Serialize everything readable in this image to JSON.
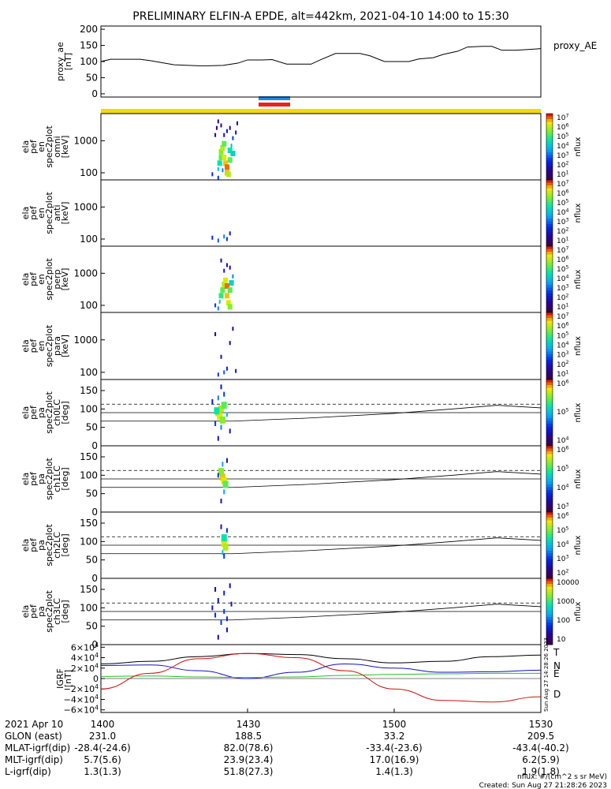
{
  "title": "PRELIMINARY ELFIN-A EPDE, alt=442km, 2021-04-10 14:00 to 15:30",
  "colors": {
    "sci_zone_bar": "#f5d90a",
    "nasc_bar": "#1e8ae8",
    "dasc_bar": "#e8231e",
    "grf_T": "#000000",
    "grf_N": "#1010c8",
    "grf_E": "#22c022",
    "grf_D": "#d01010"
  },
  "chart_data": [
    {
      "id": "proxy_ae",
      "type": "line",
      "ylabel": [
        "proxy_ae",
        "[nT]"
      ],
      "legend": "proxy_AE",
      "yticks": [
        "200",
        "150",
        "100",
        "50",
        "0"
      ],
      "ylim": [
        -10,
        210
      ],
      "x": [
        "14:00",
        "14:02",
        "14:05",
        "14:08",
        "14:10",
        "14:15",
        "14:18",
        "14:20",
        "14:22",
        "14:25",
        "14:28",
        "14:30",
        "14:33",
        "14:35",
        "14:38",
        "14:40",
        "14:43",
        "14:45",
        "14:48",
        "14:50",
        "14:53",
        "14:55",
        "14:58",
        "15:00",
        "15:03",
        "15:05",
        "15:08",
        "15:10",
        "15:13",
        "15:15",
        "15:18",
        "15:20",
        "15:22",
        "15:25",
        "15:28",
        "15:30"
      ],
      "values": [
        100,
        107,
        107,
        107,
        103,
        90,
        88,
        87,
        87,
        88,
        95,
        105,
        105,
        106,
        92,
        92,
        92,
        106,
        125,
        125,
        125,
        118,
        100,
        100,
        100,
        108,
        112,
        122,
        132,
        145,
        147,
        147,
        135,
        135,
        138,
        140
      ]
    },
    {
      "id": "en_omni",
      "type": "heatmap",
      "ylabel": [
        "ela",
        "pef",
        "en",
        "spec2plot",
        "omni",
        "[keV]"
      ],
      "yticks": [
        "1000",
        "100"
      ],
      "cbar_ticks": [
        "10^7",
        "10^6",
        "10^5",
        "10^4",
        "10^3",
        "10^2",
        "10^1"
      ],
      "cbar_label": "nflux",
      "active_time": [
        "14:33",
        "14:36"
      ],
      "cells": [
        [
          14.4,
          70,
          0.3
        ],
        [
          14.4,
          130,
          0.5
        ],
        [
          14.405,
          200,
          0.6
        ],
        [
          14.41,
          300,
          0.7
        ],
        [
          14.41,
          450,
          0.75
        ],
        [
          14.415,
          600,
          0.8
        ],
        [
          14.42,
          800,
          0.7
        ],
        [
          14.42,
          300,
          0.85
        ],
        [
          14.425,
          200,
          0.9
        ],
        [
          14.43,
          150,
          0.95
        ],
        [
          14.43,
          100,
          0.9
        ],
        [
          14.435,
          90,
          0.8
        ],
        [
          14.44,
          250,
          0.7
        ],
        [
          14.44,
          500,
          0.6
        ],
        [
          14.445,
          700,
          0.5
        ],
        [
          14.45,
          1200,
          0.3
        ],
        [
          14.42,
          1500,
          0.15
        ],
        [
          14.43,
          2000,
          0.2
        ],
        [
          14.44,
          2500,
          0.15
        ],
        [
          14.41,
          3000,
          0.1
        ],
        [
          14.4,
          4000,
          0.12
        ],
        [
          14.46,
          1800,
          0.18
        ],
        [
          14.465,
          3500,
          0.1
        ],
        [
          14.39,
          1500,
          0.12
        ],
        [
          14.395,
          2500,
          0.1
        ],
        [
          14.45,
          400,
          0.55
        ],
        [
          14.415,
          120,
          0.4
        ],
        [
          14.38,
          90,
          0.25
        ]
      ]
    },
    {
      "id": "en_anti",
      "type": "heatmap",
      "ylabel": [
        "ela",
        "pef",
        "en",
        "spec2plot",
        "anti",
        "[keV]"
      ],
      "yticks": [
        "1000",
        "100"
      ],
      "cbar_ticks": [
        "10^7",
        "10^6",
        "10^5",
        "10^4",
        "10^3",
        "10^2",
        "10^1"
      ],
      "cbar_label": "nflux",
      "active_time": [
        "14:33",
        "14:36"
      ],
      "cells": [
        [
          14.4,
          90,
          0.35
        ],
        [
          14.42,
          120,
          0.4
        ],
        [
          14.43,
          100,
          0.3
        ],
        [
          14.38,
          110,
          0.25
        ],
        [
          14.44,
          150,
          0.2
        ]
      ]
    },
    {
      "id": "en_perp",
      "type": "heatmap",
      "ylabel": [
        "ela",
        "pef",
        "en",
        "spec2plot",
        "perp",
        "[keV]"
      ],
      "yticks": [
        "1000",
        "100"
      ],
      "cbar_ticks": [
        "10^7",
        "10^6",
        "10^5",
        "10^4",
        "10^3",
        "10^2",
        "10^1"
      ],
      "cbar_label": "nflux",
      "active_time": [
        "14:33",
        "14:36"
      ],
      "cells": [
        [
          14.4,
          80,
          0.4
        ],
        [
          14.405,
          130,
          0.5
        ],
        [
          14.41,
          200,
          0.65
        ],
        [
          14.415,
          300,
          0.7
        ],
        [
          14.42,
          450,
          0.8
        ],
        [
          14.425,
          600,
          0.85
        ],
        [
          14.43,
          400,
          0.95
        ],
        [
          14.43,
          200,
          0.9
        ],
        [
          14.435,
          120,
          0.85
        ],
        [
          14.44,
          90,
          0.75
        ],
        [
          14.44,
          300,
          0.7
        ],
        [
          14.445,
          500,
          0.55
        ],
        [
          14.45,
          800,
          0.4
        ],
        [
          14.42,
          1200,
          0.2
        ],
        [
          14.43,
          1800,
          0.15
        ],
        [
          14.41,
          2500,
          0.1
        ],
        [
          14.44,
          1500,
          0.12
        ],
        [
          14.39,
          100,
          0.3
        ]
      ]
    },
    {
      "id": "en_para",
      "type": "heatmap",
      "ylabel": [
        "ela",
        "pef",
        "en",
        "spec2plot",
        "para",
        "[keV]"
      ],
      "yticks": [
        "1000",
        "100"
      ],
      "cbar_ticks": [
        "10^7",
        "10^6",
        "10^5",
        "10^4",
        "10^3",
        "10^2",
        "10^1"
      ],
      "cbar_label": "nflux",
      "active_time": [
        "14:33",
        "14:36"
      ],
      "cells": [
        [
          14.4,
          85,
          0.3
        ],
        [
          14.42,
          100,
          0.35
        ],
        [
          14.43,
          130,
          0.25
        ],
        [
          14.41,
          300,
          0.15
        ],
        [
          14.44,
          800,
          0.12
        ],
        [
          14.39,
          1500,
          0.1
        ],
        [
          14.45,
          2200,
          0.1
        ],
        [
          14.46,
          110,
          0.2
        ]
      ]
    },
    {
      "id": "pa_ch0",
      "type": "heatmap",
      "ylabel": [
        "ela",
        "pef",
        "pa",
        "spec2plot",
        "ch0LC",
        "[deg]"
      ],
      "yticks": [
        "150",
        "100",
        "50",
        "0"
      ],
      "cbar_ticks": [
        "10^6",
        "10^5",
        "10^4"
      ],
      "cbar_label": "nflux",
      "ylim": [
        0,
        180
      ],
      "lines": {
        "solid": [
          67,
          90
        ],
        "dashed": 113
      },
      "cells": [
        [
          14.4,
          90,
          0.9
        ],
        [
          14.405,
          80,
          0.85
        ],
        [
          14.41,
          100,
          0.8
        ],
        [
          14.415,
          70,
          0.75
        ],
        [
          14.42,
          110,
          0.7
        ],
        [
          14.395,
          95,
          0.6
        ],
        [
          14.4,
          130,
          0.4
        ],
        [
          14.41,
          50,
          0.4
        ],
        [
          14.42,
          140,
          0.3
        ],
        [
          14.39,
          60,
          0.3
        ],
        [
          14.43,
          85,
          0.5
        ],
        [
          14.4,
          20,
          0.2
        ],
        [
          14.41,
          160,
          0.2
        ],
        [
          14.38,
          120,
          0.2
        ],
        [
          14.44,
          40,
          0.2
        ]
      ]
    },
    {
      "id": "pa_ch1",
      "type": "heatmap",
      "ylabel": [
        "ela",
        "pef",
        "pa",
        "spec2plot",
        "ch1LC",
        "[deg]"
      ],
      "yticks": [
        "150",
        "100",
        "50",
        "0"
      ],
      "cbar_ticks": [
        "10^6",
        "10^5",
        "10^4",
        "10^3"
      ],
      "cbar_label": "nflux",
      "ylim": [
        0,
        180
      ],
      "lines": {
        "solid": [
          67,
          90
        ],
        "dashed": 113
      },
      "cells": [
        [
          14.415,
          95,
          0.9
        ],
        [
          14.42,
          85,
          0.85
        ],
        [
          14.41,
          110,
          0.75
        ],
        [
          14.425,
          75,
          0.7
        ],
        [
          14.415,
          130,
          0.45
        ],
        [
          14.42,
          55,
          0.45
        ],
        [
          14.4,
          100,
          0.3
        ],
        [
          14.43,
          140,
          0.2
        ],
        [
          14.41,
          30,
          0.2
        ]
      ]
    },
    {
      "id": "pa_ch2",
      "type": "heatmap",
      "ylabel": [
        "ela",
        "pef",
        "pa",
        "spec2plot",
        "ch2LC",
        "[deg]"
      ],
      "yticks": [
        "150",
        "100",
        "50",
        "0"
      ],
      "cbar_ticks": [
        "10^6",
        "10^5",
        "10^4",
        "10^3",
        "10^2"
      ],
      "cbar_label": "nflux",
      "ylim": [
        0,
        180
      ],
      "lines": {
        "solid": [
          67,
          90
        ],
        "dashed": 113
      },
      "cells": [
        [
          14.42,
          95,
          0.85
        ],
        [
          14.425,
          85,
          0.8
        ],
        [
          14.42,
          110,
          0.6
        ],
        [
          14.415,
          70,
          0.5
        ],
        [
          14.43,
          130,
          0.3
        ],
        [
          14.41,
          140,
          0.2
        ],
        [
          14.42,
          60,
          0.3
        ]
      ]
    },
    {
      "id": "pa_ch3",
      "type": "heatmap",
      "ylabel": [
        "ela",
        "pef",
        "pa",
        "spec2plot",
        "ch3LC",
        "[deg]"
      ],
      "yticks": [
        "150",
        "100",
        "50",
        "0"
      ],
      "cbar_ticks": [
        "10000",
        "1000",
        "100",
        "10"
      ],
      "cbar_label": "nflux",
      "ylim": [
        0,
        180
      ],
      "lines": {
        "solid": [
          67,
          90
        ],
        "dashed": 113
      },
      "cells": [
        [
          14.38,
          100,
          0.2
        ],
        [
          14.39,
          80,
          0.25
        ],
        [
          14.4,
          120,
          0.2
        ],
        [
          14.41,
          60,
          0.3
        ],
        [
          14.42,
          140,
          0.25
        ],
        [
          14.43,
          40,
          0.2
        ],
        [
          14.44,
          160,
          0.15
        ],
        [
          14.4,
          20,
          0.15
        ],
        [
          14.42,
          90,
          0.3
        ],
        [
          14.445,
          110,
          0.2
        ],
        [
          14.39,
          150,
          0.15
        ],
        [
          14.43,
          70,
          0.25
        ]
      ]
    },
    {
      "id": "grf",
      "type": "line",
      "ylabel": [
        "IGRF",
        "[nT]"
      ],
      "yticks": [
        "6×10^4",
        "4×10^4",
        "2×10^4",
        "0",
        "−2×10^4",
        "−4×10^4",
        "−6×10^4"
      ],
      "ylim": [
        -65000,
        65000
      ],
      "x": [
        "14:00",
        "14:10",
        "14:20",
        "14:30",
        "14:40",
        "14:50",
        "15:00",
        "15:10",
        "15:20",
        "15:30"
      ],
      "series": [
        {
          "name": "T",
          "values": [
            28000,
            33000,
            42000,
            48000,
            46000,
            38000,
            30000,
            33000,
            42000,
            45000
          ]
        },
        {
          "name": "N",
          "values": [
            25000,
            26000,
            15000,
            0,
            12000,
            28000,
            20000,
            12000,
            13000,
            16000
          ]
        },
        {
          "name": "E",
          "values": [
            4000,
            5000,
            3000,
            2000,
            3000,
            6000,
            8000,
            9000,
            10000,
            10000
          ]
        },
        {
          "name": "D",
          "values": [
            -20000,
            10000,
            38000,
            48000,
            40000,
            15000,
            -20000,
            -42000,
            -45000,
            -35000
          ]
        }
      ]
    }
  ],
  "xaxis": {
    "rows": [
      {
        "label": "2021 Apr 10",
        "values": [
          "1400",
          "1430",
          "1500",
          "1530"
        ]
      },
      {
        "label": "GLON (east)",
        "values": [
          "231.0",
          "188.5",
          "33.2",
          "209.5"
        ]
      },
      {
        "label": "MLAT-igrf(dip)",
        "values": [
          "-28.4(-24.6)",
          "82.0(78.6)",
          "-33.4(-23.6)",
          "-43.4(-40.2)"
        ]
      },
      {
        "label": "MLT-igrf(dip)",
        "values": [
          "5.7(5.6)",
          "23.9(23.4)",
          "17.0(16.9)",
          "6.2(5.9)"
        ]
      },
      {
        "label": "L-igrf(dip)",
        "values": [
          "1.3(1.3)",
          "51.8(27.3)",
          "1.4(1.3)",
          "1.9(1.8)"
        ]
      }
    ]
  },
  "footer": {
    "units": "nflux: #/(cm^2 s sr MeV)",
    "created": "Created: Sun Aug 27 21:28:26 2023",
    "side_stamp": "Sun Aug 27 14:28:26 2023"
  }
}
